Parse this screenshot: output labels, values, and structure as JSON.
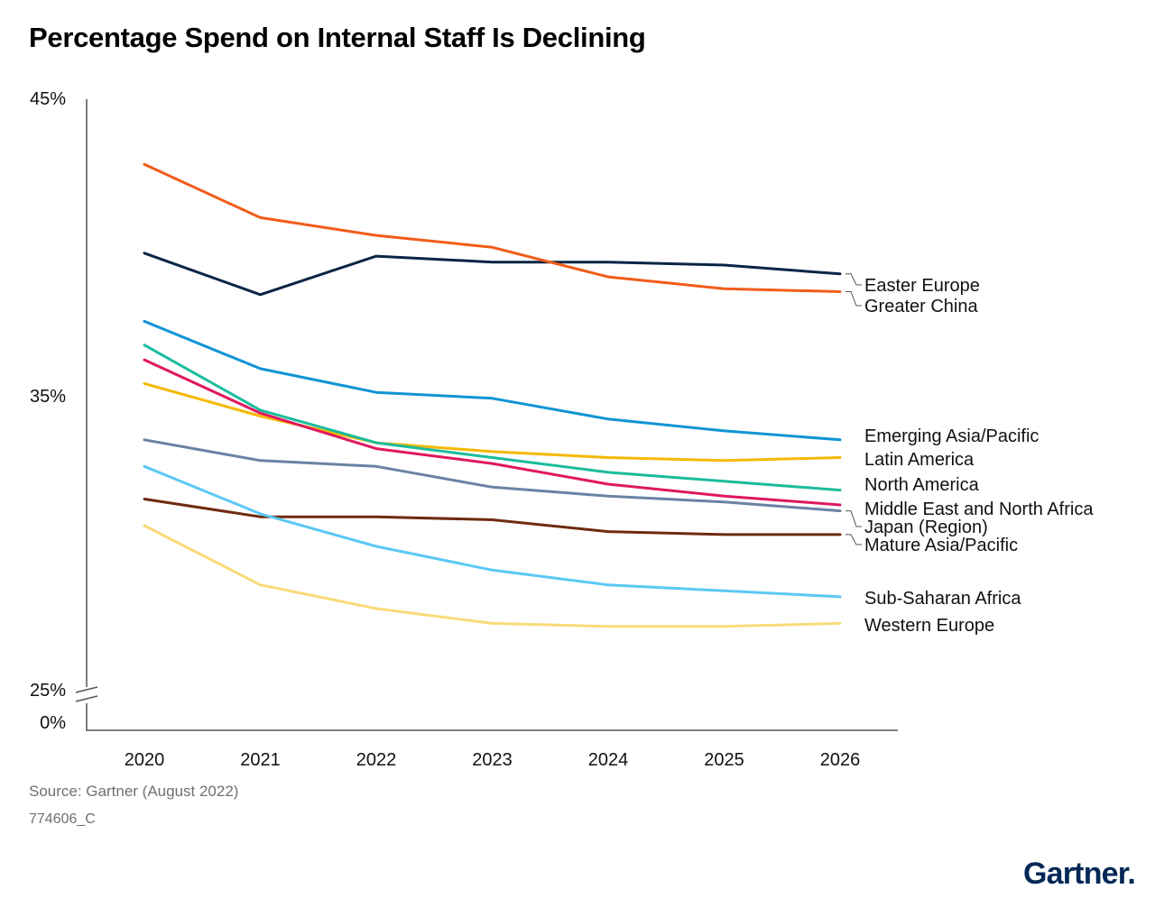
{
  "title": "Percentage Spend on Internal Staff Is Declining",
  "source": "Source: Gartner (August 2022)",
  "code": "774606_C",
  "brand": "Gartner",
  "chart_data": {
    "type": "line",
    "x": [
      "2020",
      "2021",
      "2022",
      "2023",
      "2024",
      "2025",
      "2026"
    ],
    "y_ticks": [
      "45%",
      "35%",
      "25%",
      "0%"
    ],
    "y_axis_break": "between 25% and 0%",
    "ylim": [
      25,
      45
    ],
    "grid": false,
    "legend": "direct labels at line ends (right)",
    "series": [
      {
        "name": "Easter Europe",
        "color": "#0a2446",
        "values": [
          39.8,
          38.4,
          39.7,
          39.5,
          39.5,
          39.4,
          39.1
        ]
      },
      {
        "name": "Greater China",
        "color": "#f25c19",
        "values": [
          42.8,
          41.0,
          40.4,
          40.0,
          39.0,
          38.6,
          38.5
        ]
      },
      {
        "name": "Emerging Asia/Pacific",
        "color": "#0f94d4",
        "values": [
          37.5,
          35.9,
          35.1,
          34.9,
          34.2,
          33.8,
          33.5
        ]
      },
      {
        "name": "Latin America",
        "color": "#f5b800",
        "values": [
          35.4,
          34.3,
          33.4,
          33.1,
          32.9,
          32.8,
          32.9
        ]
      },
      {
        "name": "North America",
        "color": "#1abc9c",
        "values": [
          36.7,
          34.5,
          33.4,
          32.9,
          32.4,
          32.1,
          31.8
        ]
      },
      {
        "name": "Middle East and North Africa",
        "color": "#e0185f",
        "values": [
          36.2,
          34.4,
          33.2,
          32.7,
          32.0,
          31.6,
          31.3
        ]
      },
      {
        "name": "Japan (Region)",
        "color": "#6a82a3",
        "values": [
          33.5,
          32.8,
          32.6,
          31.9,
          31.6,
          31.4,
          31.1
        ]
      },
      {
        "name": "Mature Asia/Pacific",
        "color": "#6e2b0d",
        "values": [
          31.5,
          30.9,
          30.9,
          30.8,
          30.4,
          30.3,
          30.3
        ]
      },
      {
        "name": "Sub-Saharan Africa",
        "color": "#5bc8f5",
        "values": [
          32.6,
          31.0,
          29.9,
          29.1,
          28.6,
          28.4,
          28.2
        ]
      },
      {
        "name": "Western Europe",
        "color": "#fada78",
        "values": [
          30.6,
          28.6,
          27.8,
          27.3,
          27.2,
          27.2,
          27.3
        ]
      }
    ]
  }
}
